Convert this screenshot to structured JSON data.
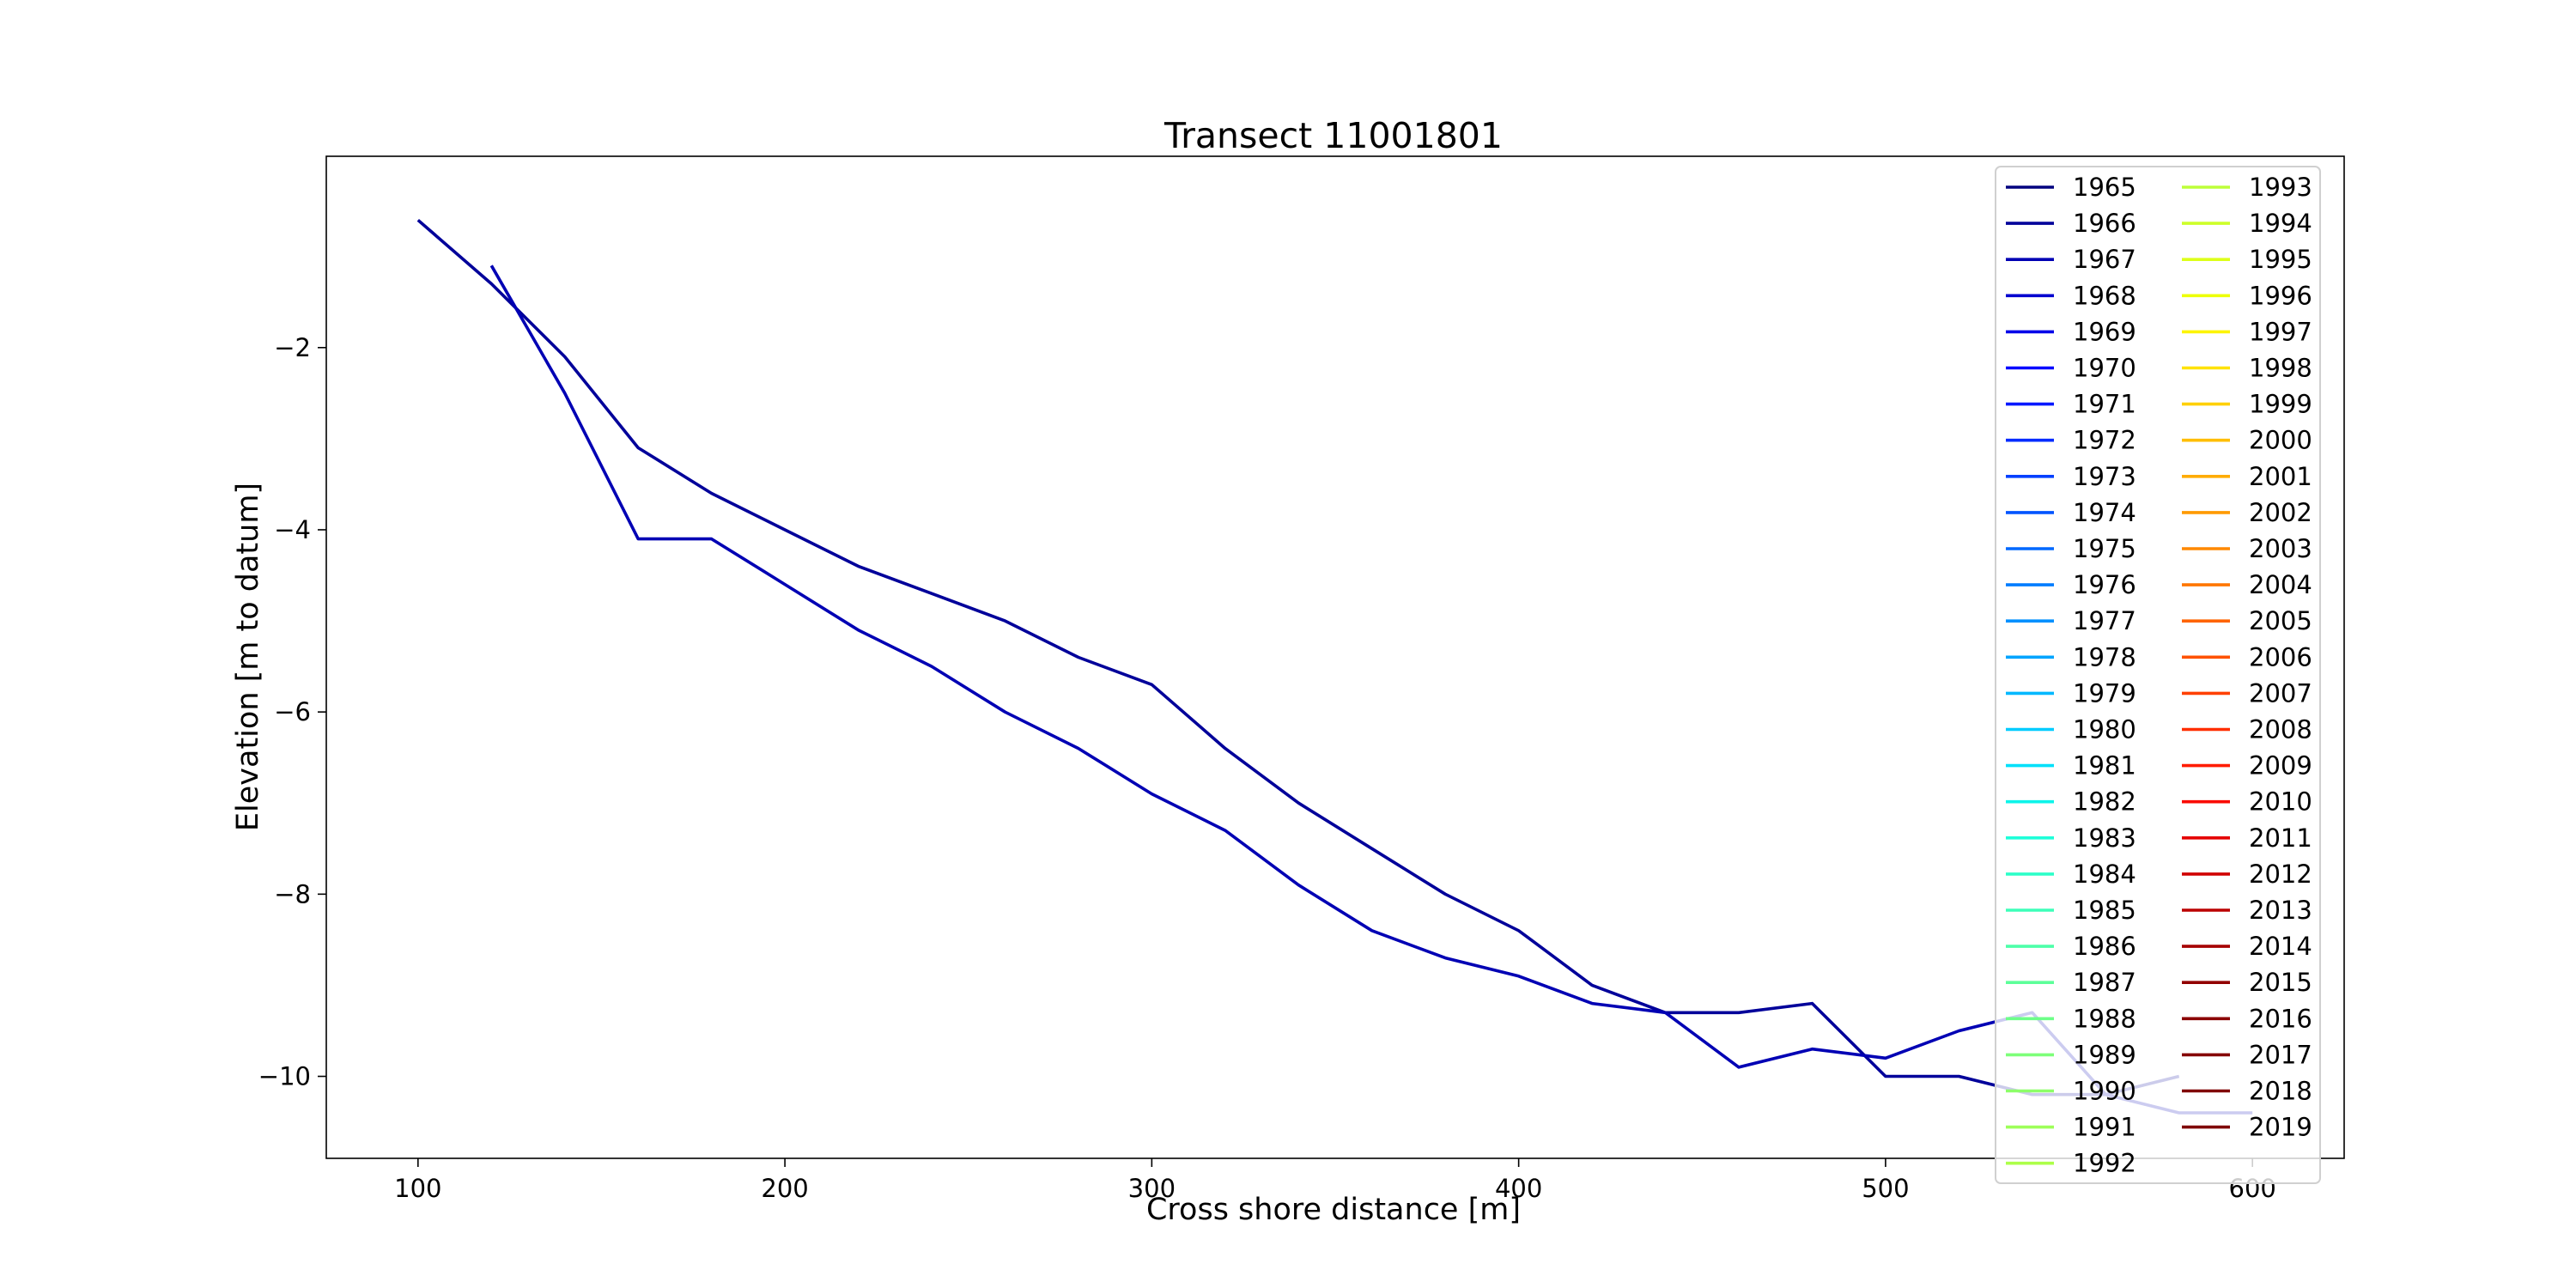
{
  "chart_data": {
    "type": "line",
    "title": "Transect 11001801",
    "xlabel": "Cross shore distance [m]",
    "ylabel": "Elevation [m to datum]",
    "xlim": [
      75,
      625
    ],
    "ylim": [
      -10.9,
      0.1
    ],
    "xticks": [
      100,
      200,
      300,
      400,
      500,
      600
    ],
    "yticks": [
      -2,
      -4,
      -6,
      -8,
      -10
    ],
    "grid": false,
    "legend_position": "right",
    "legend_columns": 2,
    "legend": [
      {
        "label": "1965",
        "color": "#00007f"
      },
      {
        "label": "1966",
        "color": "#00009a"
      },
      {
        "label": "1967",
        "color": "#0000b4"
      },
      {
        "label": "1968",
        "color": "#0000cf"
      },
      {
        "label": "1969",
        "color": "#0000e9"
      },
      {
        "label": "1970",
        "color": "#0004ff"
      },
      {
        "label": "1971",
        "color": "#0018ff"
      },
      {
        "label": "1972",
        "color": "#002cff"
      },
      {
        "label": "1973",
        "color": "#0040ff"
      },
      {
        "label": "1974",
        "color": "#0054ff"
      },
      {
        "label": "1975",
        "color": "#0068ff"
      },
      {
        "label": "1976",
        "color": "#007cff"
      },
      {
        "label": "1977",
        "color": "#0090ff"
      },
      {
        "label": "1978",
        "color": "#00a4ff"
      },
      {
        "label": "1979",
        "color": "#00b8ff"
      },
      {
        "label": "1980",
        "color": "#00ccff"
      },
      {
        "label": "1981",
        "color": "#00e0fa"
      },
      {
        "label": "1982",
        "color": "#0df4ea"
      },
      {
        "label": "1983",
        "color": "#1dffd9"
      },
      {
        "label": "1984",
        "color": "#2dffc9"
      },
      {
        "label": "1985",
        "color": "#3dffb9"
      },
      {
        "label": "1986",
        "color": "#4dffa9"
      },
      {
        "label": "1987",
        "color": "#5dff99"
      },
      {
        "label": "1988",
        "color": "#6dff89"
      },
      {
        "label": "1989",
        "color": "#7dff79"
      },
      {
        "label": "1990",
        "color": "#8dff69"
      },
      {
        "label": "1991",
        "color": "#9dff59"
      },
      {
        "label": "1992",
        "color": "#adff49"
      },
      {
        "label": "1993",
        "color": "#bdff39"
      },
      {
        "label": "1994",
        "color": "#cdff29"
      },
      {
        "label": "1995",
        "color": "#ddff19"
      },
      {
        "label": "1996",
        "color": "#edff09"
      },
      {
        "label": "1997",
        "color": "#fdf400"
      },
      {
        "label": "1998",
        "color": "#ffe200"
      },
      {
        "label": "1999",
        "color": "#ffd000"
      },
      {
        "label": "2000",
        "color": "#ffbe00"
      },
      {
        "label": "2001",
        "color": "#ffac00"
      },
      {
        "label": "2002",
        "color": "#ff9a00"
      },
      {
        "label": "2003",
        "color": "#ff8800"
      },
      {
        "label": "2004",
        "color": "#ff7600"
      },
      {
        "label": "2005",
        "color": "#ff6400"
      },
      {
        "label": "2006",
        "color": "#ff5200"
      },
      {
        "label": "2007",
        "color": "#ff4000"
      },
      {
        "label": "2008",
        "color": "#ff2e00"
      },
      {
        "label": "2009",
        "color": "#ff1c00"
      },
      {
        "label": "2010",
        "color": "#fa0a00"
      },
      {
        "label": "2011",
        "color": "#e50000"
      },
      {
        "label": "2012",
        "color": "#d00000"
      },
      {
        "label": "2013",
        "color": "#bb0000"
      },
      {
        "label": "2014",
        "color": "#a60000"
      },
      {
        "label": "2015",
        "color": "#910000"
      },
      {
        "label": "2016",
        "color": "#8b0000"
      },
      {
        "label": "2017",
        "color": "#850000"
      },
      {
        "label": "2018",
        "color": "#800000"
      },
      {
        "label": "2019",
        "color": "#7f0000"
      }
    ],
    "series": [
      {
        "name": "1965",
        "color": "#00009a",
        "x": [
          100,
          120,
          140,
          160,
          180,
          200,
          220,
          240,
          260,
          280,
          300,
          320,
          340,
          360,
          380,
          400,
          420,
          440,
          460,
          480,
          500,
          520,
          540,
          560,
          580
        ],
        "y": [
          -0.6,
          -1.3,
          -2.1,
          -3.1,
          -3.6,
          -4.0,
          -4.4,
          -4.7,
          -5.0,
          -5.4,
          -5.7,
          -6.4,
          -7.0,
          -7.5,
          -8.0,
          -8.4,
          -9.0,
          -9.3,
          -9.3,
          -9.2,
          -10.0,
          -10.0,
          -10.2,
          -10.2,
          -10.0
        ]
      },
      {
        "name": "1966",
        "color": "#0000b4",
        "x": [
          120,
          140,
          160,
          180,
          200,
          220,
          240,
          260,
          280,
          300,
          320,
          340,
          360,
          380,
          400,
          420,
          440,
          460,
          480,
          500,
          520,
          540,
          560,
          580,
          600
        ],
        "y": [
          -1.1,
          -2.5,
          -4.1,
          -4.1,
          -4.6,
          -5.1,
          -5.5,
          -6.0,
          -6.4,
          -6.9,
          -7.3,
          -7.9,
          -8.4,
          -8.7,
          -8.9,
          -9.2,
          -9.3,
          -9.9,
          -9.7,
          -9.8,
          -9.5,
          -9.3,
          -10.2,
          -10.4,
          -10.4
        ]
      }
    ]
  }
}
